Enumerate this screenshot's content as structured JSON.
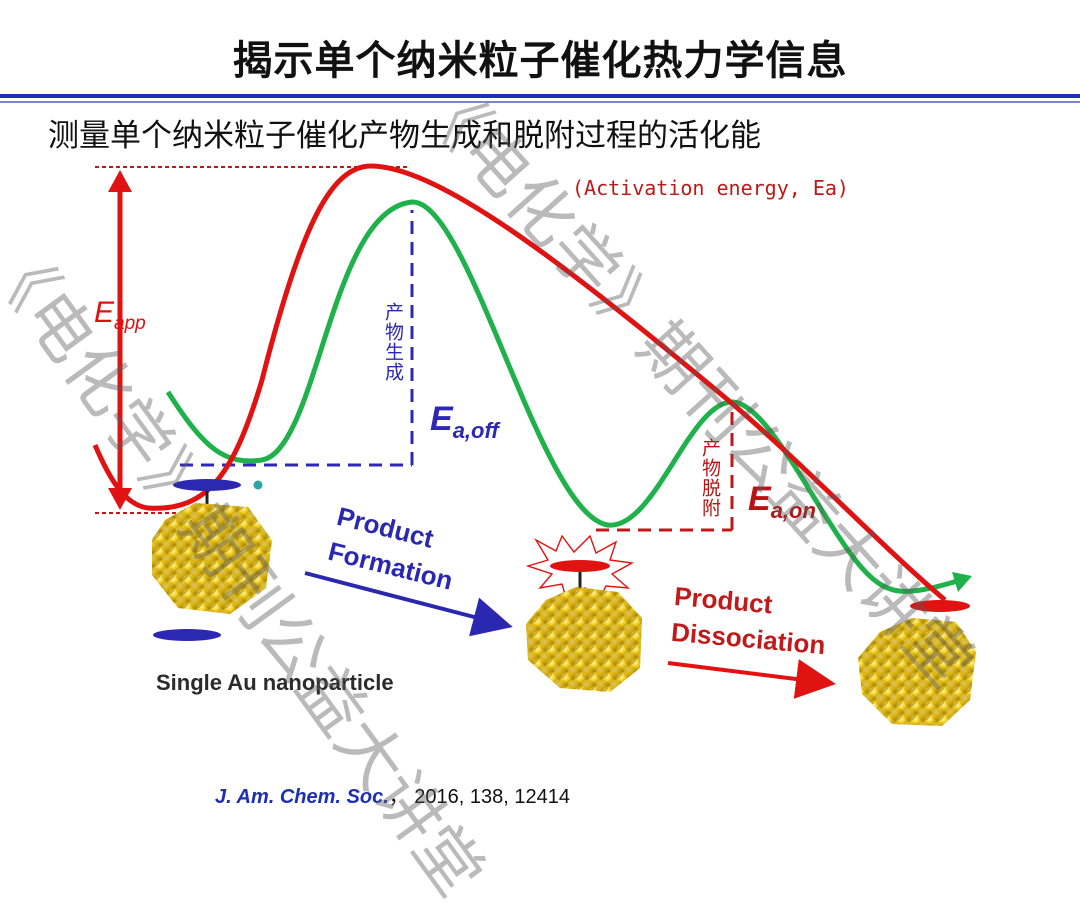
{
  "header": {
    "title": "揭示单个纳米粒子催化热力学信息"
  },
  "subtitle": "测量单个纳米粒子催化产物生成和脱附过程的活化能",
  "labels": {
    "activation_energy": "(Activation energy, Ea)",
    "e_app_main": "E",
    "e_app_sub": "app",
    "e_off_main": "E",
    "e_off_sub": "a,off",
    "e_on_main": "E",
    "e_on_sub": "a,on",
    "product_generation": "产物生成",
    "product_desorption": "产物脱附",
    "product_formation_line1": "Product",
    "product_formation_line2": "Formation",
    "product_dissociation_line1": "Product",
    "product_dissociation_line2": "Dissociation",
    "single_au": "Single Au nanoparticle"
  },
  "citation": {
    "journal": "J. Am. Chem. Soc.",
    "details": "， 2016, 138, 12414"
  },
  "watermark": {
    "text1": "《电化学》期刊公益大讲堂",
    "text2": "《电化学》期刊公益大讲堂"
  },
  "colors": {
    "red_curve": "#e01212",
    "green_curve": "#1fb14a",
    "blue_dash": "#2c28b4",
    "red_dash": "#c01818",
    "gold": "#f2cd1e",
    "title_rule": "#1e2fb0"
  },
  "icons": [
    "double-arrow-icon",
    "right-arrow-icon",
    "nanoparticle-icon",
    "molecule-icon",
    "starburst-icon"
  ]
}
